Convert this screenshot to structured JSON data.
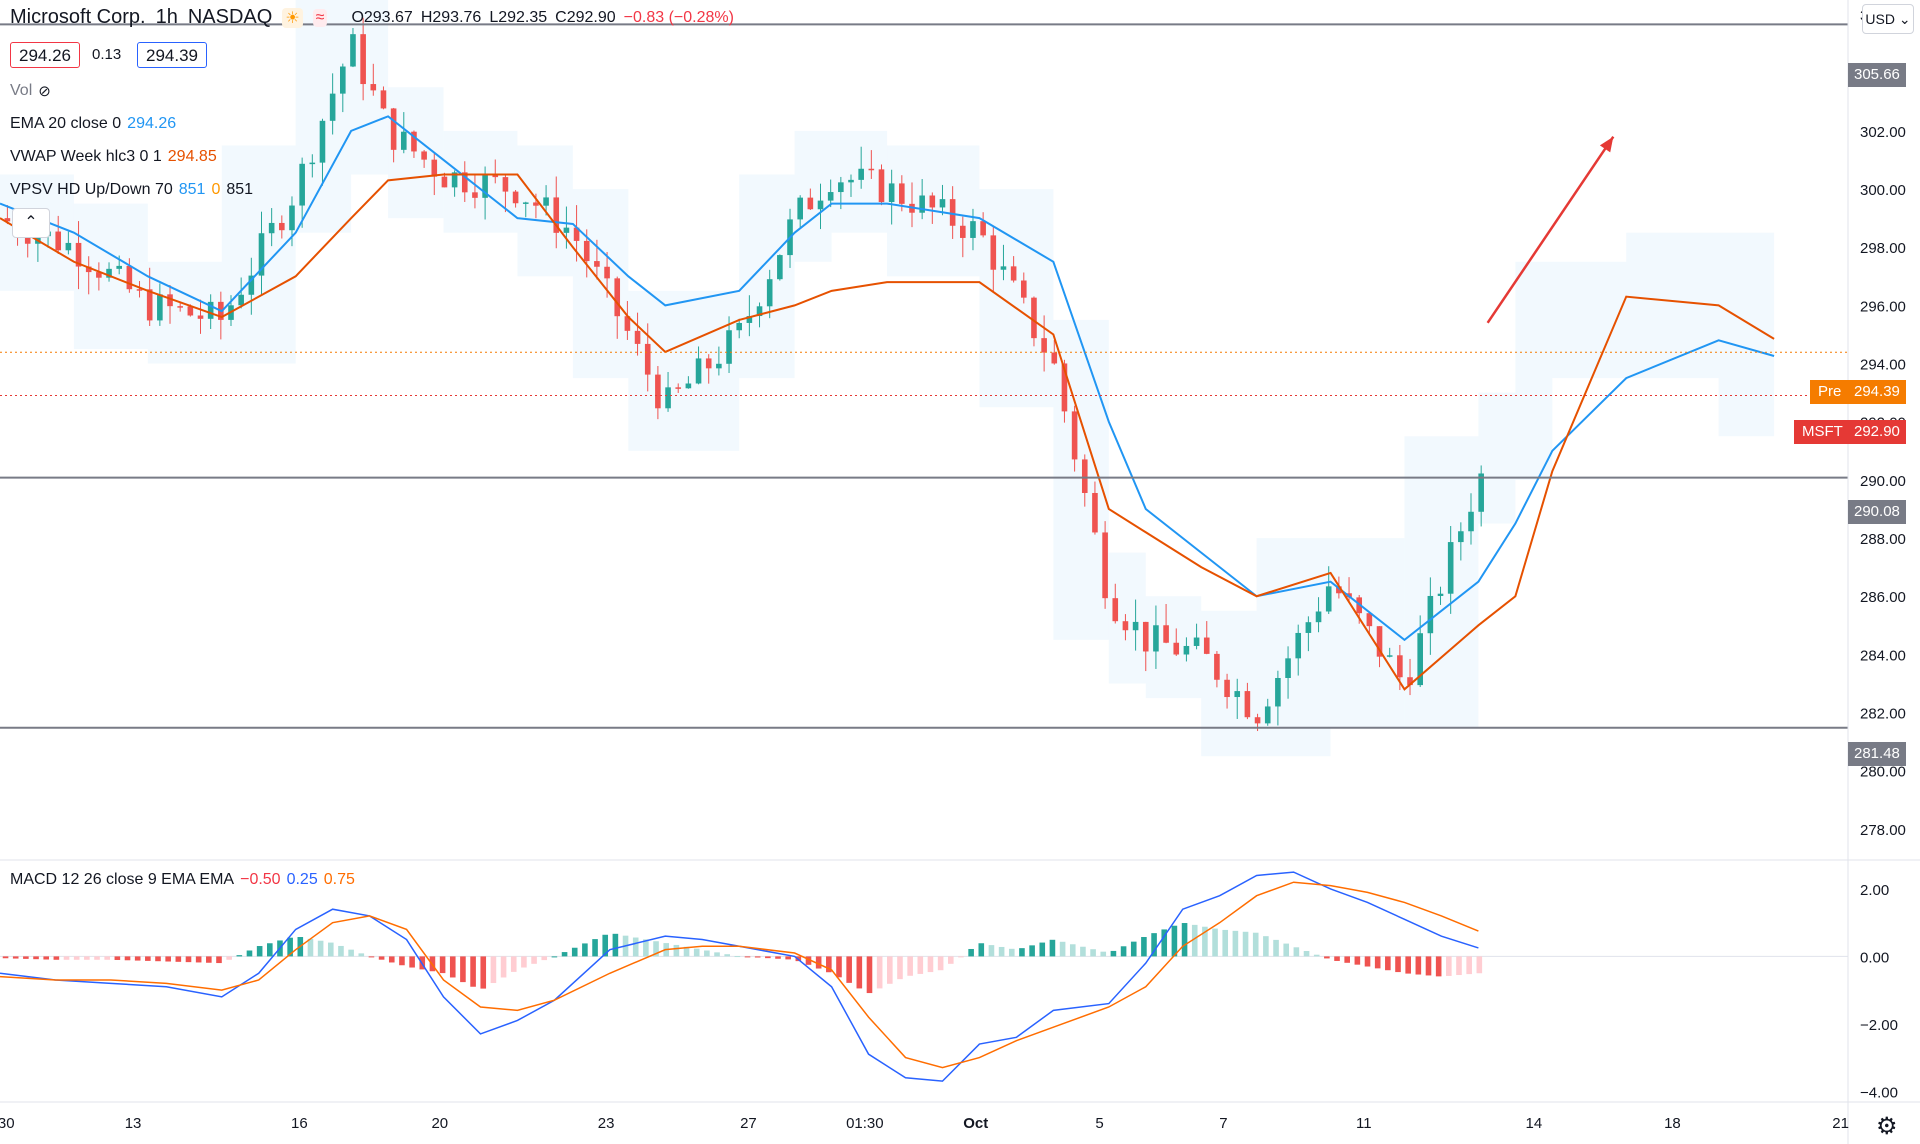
{
  "header": {
    "symbol_name": "Microsoft Corp.",
    "interval": "1h",
    "exchange": "NASDAQ",
    "open": "O293.67",
    "high": "H293.76",
    "low": "L292.35",
    "close": "C292.90",
    "change": "−0.83 (−0.28%)",
    "icons": [
      "sun-icon",
      "wave-icon"
    ]
  },
  "quote": {
    "bid": "294.26",
    "spread": "0.13",
    "ask": "294.39"
  },
  "currency": "USD",
  "indicators": {
    "vol": {
      "label": "Vol"
    },
    "ema": {
      "label": "EMA 20 close 0",
      "value": "294.26",
      "color": "#2196f3"
    },
    "vwap": {
      "label": "VWAP Week hlc3 0 1",
      "value": "294.85",
      "color": "#e65100"
    },
    "vpsv": {
      "label": "VPSV HD Up/Down 70",
      "v1": "851",
      "v2": "0",
      "v3": "851"
    }
  },
  "macd_legend": {
    "label": "MACD 12 26 close 9 EMA EMA",
    "hist": "−0.50",
    "macd": "0.25",
    "signal": "0.75"
  },
  "colors": {
    "up": "#26a69a",
    "down": "#ef5350",
    "ema": "#2196f3",
    "vwap": "#e65100",
    "hline": "#787b86",
    "arrow": "#e53935",
    "macd": "#2962ff",
    "signal": "#ff6d00"
  },
  "price_axis": {
    "ticks": [
      "306.00",
      "304.00",
      "302.00",
      "300.00",
      "298.00",
      "296.00",
      "294.00",
      "292.00",
      "290.00",
      "288.00",
      "286.00",
      "284.00",
      "282.00",
      "280.00",
      "278.00"
    ]
  },
  "macd_axis": {
    "ticks": [
      "2.00",
      "0.00",
      "−2.00",
      "−4.00"
    ]
  },
  "time_axis": {
    "ticks": [
      "9:30",
      "13",
      "16",
      "20",
      "23",
      "27",
      "01:30",
      "Oct",
      "5",
      "7",
      "11",
      "14",
      "18",
      "21"
    ]
  },
  "level_labels": {
    "high": "305.66",
    "mid": "290.08",
    "low": "281.48"
  },
  "price_tags": {
    "pre_label": "Pre",
    "pre_value": "294.39",
    "last_label": "MSFT",
    "last_value": "292.90"
  },
  "chart_data": [
    {
      "type": "line",
      "title": "Microsoft Corp. · 1h · NASDAQ",
      "ylim": [
        277,
        306.5
      ],
      "x_range": [
        0,
        100
      ],
      "x": [
        0,
        4,
        8,
        12,
        16,
        19,
        21,
        24,
        28,
        31,
        34,
        36,
        40,
        43,
        45,
        48,
        53,
        57,
        60,
        62,
        65,
        68,
        72,
        76,
        80,
        82,
        84,
        88,
        93,
        96
      ],
      "series": [
        {
          "name": "Price",
          "values": [
            299,
            298,
            296,
            295.5,
            300,
            305,
            302,
            300.5,
            300,
            298.5,
            295,
            292.5,
            295,
            299,
            300.5,
            300,
            298.5,
            294,
            286,
            284.5,
            284,
            282,
            286.5,
            283,
            290,
            291.5,
            296,
            295,
            297,
            293
          ]
        },
        {
          "name": "EMA 20 close 0",
          "values": [
            299.5,
            298.5,
            297,
            295.8,
            298.5,
            302,
            302.5,
            301,
            299,
            298.8,
            297,
            296,
            296.5,
            298.5,
            299.5,
            299.5,
            299,
            297.5,
            292,
            289,
            287.5,
            286,
            286.5,
            284.5,
            286.5,
            288.5,
            291,
            293.5,
            294.8,
            294.26
          ]
        },
        {
          "name": "VWAP Week hlc3 0 1",
          "values": [
            299,
            297.5,
            296.5,
            295.6,
            297,
            299,
            300.3,
            300.5,
            300.5,
            298,
            295.6,
            294.4,
            295.5,
            296,
            296.5,
            296.8,
            296.8,
            295,
            289,
            288.2,
            287,
            286,
            286.8,
            282.8,
            285,
            286,
            290.3,
            296.3,
            296,
            294.85
          ]
        }
      ],
      "levels": [
        305.66,
        290.08,
        281.48
      ],
      "projection": {
        "from": [
          80.5,
          295.4
        ],
        "to": [
          87.3,
          301.8
        ]
      }
    },
    {
      "type": "line",
      "title": "MACD 12 26 close 9 EMA EMA",
      "ylim": [
        -4.2,
        2.8
      ],
      "x_range": [
        0,
        100
      ],
      "x": [
        0,
        3,
        6,
        9,
        12,
        14,
        16,
        18,
        20,
        22,
        24,
        26,
        28,
        30,
        33,
        36,
        38,
        40,
        43,
        45,
        47,
        49,
        51,
        53,
        55,
        57,
        60,
        62,
        64,
        66,
        68,
        70,
        72,
        74,
        76,
        78,
        80
      ],
      "series": [
        {
          "name": "MACD",
          "values": [
            -0.5,
            -0.7,
            -0.8,
            -0.9,
            -1.2,
            -0.5,
            0.8,
            1.4,
            1.2,
            0.5,
            -1.2,
            -2.3,
            -1.9,
            -1.3,
            0.2,
            0.6,
            0.5,
            0.3,
            0,
            -0.9,
            -2.9,
            -3.6,
            -3.7,
            -2.6,
            -2.4,
            -1.6,
            -1.4,
            -0.2,
            1.4,
            1.8,
            2.4,
            2.5,
            2.0,
            1.6,
            1.1,
            0.6,
            0.25
          ]
        },
        {
          "name": "Signal",
          "values": [
            -0.6,
            -0.7,
            -0.7,
            -0.8,
            -1.0,
            -0.7,
            0.2,
            1.0,
            1.2,
            0.8,
            -0.7,
            -1.5,
            -1.6,
            -1.3,
            -0.5,
            0.2,
            0.3,
            0.3,
            0.1,
            -0.4,
            -1.8,
            -3.0,
            -3.3,
            -3.0,
            -2.5,
            -2.1,
            -1.5,
            -0.9,
            0.3,
            1.0,
            1.8,
            2.2,
            2.1,
            1.9,
            1.6,
            1.2,
            0.75
          ]
        },
        {
          "name": "Histogram",
          "values": [
            -0.05,
            -0.1,
            -0.1,
            -0.15,
            -0.2,
            0.3,
            0.6,
            0.4,
            0,
            -0.3,
            -0.5,
            -1.0,
            -0.4,
            0,
            0.7,
            0.4,
            0.2,
            0,
            -0.1,
            -0.5,
            -1.1,
            -0.6,
            -0.4,
            0.4,
            0.2,
            0.5,
            0.1,
            0.6,
            1.0,
            0.8,
            0.7,
            0.3,
            -0.1,
            -0.3,
            -0.5,
            -0.6,
            -0.5
          ]
        }
      ]
    }
  ]
}
